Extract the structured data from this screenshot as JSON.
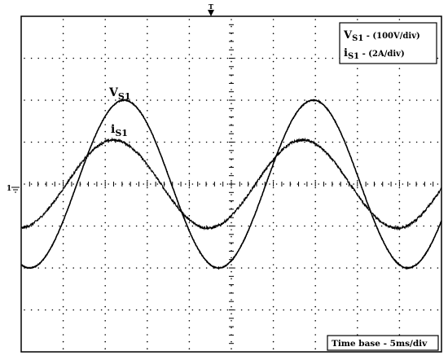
{
  "chart_data": {
    "type": "line",
    "xlim": [
      0,
      50
    ],
    "ylim": [
      -4,
      4
    ],
    "grid": true,
    "legend": "top-right",
    "legend_entries": [
      {
        "main": "V",
        "sub": "S1",
        "scale": " - (100V/div)"
      },
      {
        "main": "i",
        "sub": "S1",
        "scale": " - (2A/div)"
      }
    ],
    "timebase_label": "Time base - 5ms/div",
    "markers": {
      "trigger": "T",
      "ground": "1"
    },
    "series": [
      {
        "name": "V",
        "name_sub": "S1",
        "amplitude_div": 2.0,
        "period_div": 4.5,
        "peak_time_div": 2.45,
        "offset_div": 0,
        "noise_div": 0.02
      },
      {
        "name": "i",
        "name_sub": "S1",
        "amplitude_div": 1.05,
        "period_div": 4.5,
        "peak_time_div": 2.2,
        "offset_div": 0,
        "noise_div": 0.06
      }
    ]
  },
  "colors": {
    "trace": "#000000",
    "grid": "#000000",
    "background": "#ffffff"
  }
}
